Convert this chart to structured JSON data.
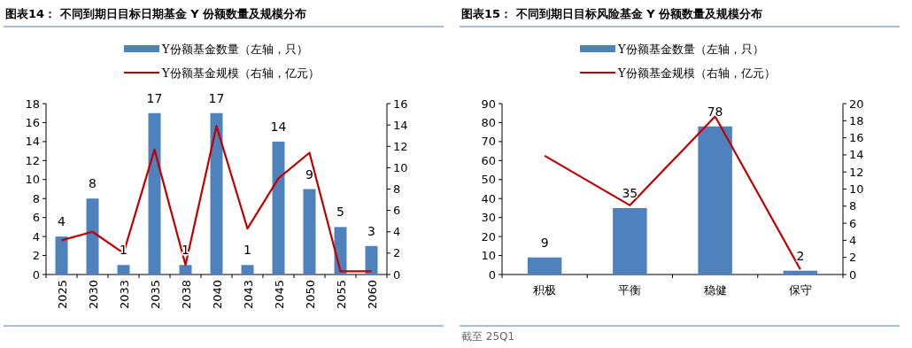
{
  "chart_data": [
    {
      "type": "bar",
      "title": "图表14：  不同到期日目标日期基金 Y 份额数量及规模分布",
      "categories": [
        "2025",
        "2030",
        "2033",
        "2035",
        "2038",
        "2040",
        "2043",
        "2045",
        "2050",
        "2055",
        "2060"
      ],
      "series": [
        {
          "name": "Y份额基金数量（左轴，只）",
          "color": "#4f81bd",
          "values": [
            4,
            8,
            1,
            17,
            1,
            17,
            1,
            14,
            9,
            5,
            3
          ],
          "value_labels": [
            "4",
            "8",
            "1",
            "17",
            "1",
            "17",
            "1",
            "14",
            "9",
            "5",
            "3"
          ]
        },
        {
          "name": "Y份额基金规模（右轴，亿元）",
          "type": "line",
          "axis": "y2",
          "color": "#c00000",
          "values": [
            3.2,
            4.0,
            2.0,
            11.7,
            0.9,
            13.9,
            4.3,
            9.0,
            11.4,
            0.3,
            0.3
          ]
        }
      ],
      "ylim": [
        0,
        18
      ],
      "yticks": [
        0,
        2,
        4,
        6,
        8,
        10,
        12,
        14,
        16,
        18
      ],
      "y2lim": [
        0,
        16
      ],
      "y2ticks": [
        0,
        2,
        4,
        6,
        8,
        10,
        12,
        14,
        16
      ],
      "legend": "top",
      "grid": false
    },
    {
      "type": "bar",
      "title": "图表15：  不同到期日目标风险基金 Y 份额数量及规模分布",
      "categories": [
        "积极",
        "平衡",
        "稳健",
        "保守"
      ],
      "series": [
        {
          "name": "Y份额基金数量（左轴，只）",
          "color": "#4f81bd",
          "values": [
            9,
            35,
            78,
            2
          ],
          "value_labels": [
            "9",
            "35",
            "78",
            "2"
          ]
        },
        {
          "name": "Y份额基金规模（右轴，亿元）",
          "type": "line",
          "axis": "y2",
          "color": "#c00000",
          "values": [
            13.9,
            8.1,
            18.5,
            0.6
          ]
        }
      ],
      "ylim": [
        0,
        90
      ],
      "yticks": [
        0,
        10,
        20,
        30,
        40,
        50,
        60,
        70,
        80,
        90
      ],
      "y2lim": [
        0,
        20
      ],
      "y2ticks": [
        0,
        2,
        4,
        6,
        8,
        10,
        12,
        14,
        16,
        18,
        20
      ],
      "legend": "top",
      "grid": false,
      "annotations": [
        "截至 25Q1"
      ]
    }
  ]
}
